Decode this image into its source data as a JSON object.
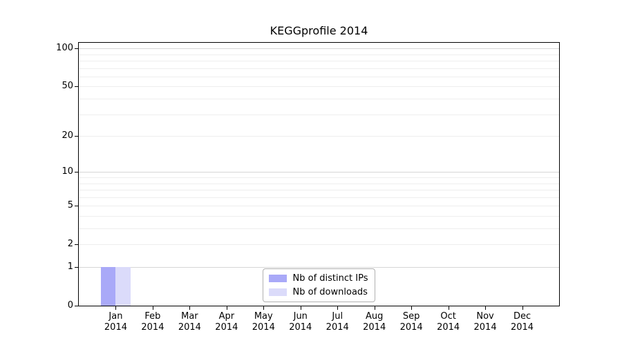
{
  "chart_data": {
    "type": "bar",
    "title": "KEGGprofile 2014",
    "categories": [
      "Jan",
      "Feb",
      "Mar",
      "Apr",
      "May",
      "Jun",
      "Jul",
      "Aug",
      "Sep",
      "Oct",
      "Nov",
      "Dec"
    ],
    "category_year": "2014",
    "series": [
      {
        "name": "Nb of distinct IPs",
        "color": "#a9a9f8",
        "values": [
          1,
          0,
          0,
          0,
          0,
          0,
          0,
          0,
          0,
          0,
          0,
          0
        ]
      },
      {
        "name": "Nb of downloads",
        "color": "#dbdbfa",
        "values": [
          1,
          0,
          0,
          0,
          0,
          0,
          0,
          0,
          0,
          0,
          0,
          0
        ]
      }
    ],
    "xlabel": "",
    "ylabel": "",
    "yaxis": {
      "scale": "log1p",
      "tick_values": [
        0,
        1,
        2,
        5,
        10,
        20,
        50,
        100
      ],
      "grid_major_values": [
        1,
        10,
        100
      ],
      "grid_minor_values": [
        2,
        3,
        4,
        5,
        6,
        7,
        8,
        9,
        20,
        30,
        40,
        50,
        60,
        70,
        80,
        90
      ],
      "ylim": [
        0,
        111
      ]
    },
    "grid": true,
    "legend_position": "lower center inside",
    "colors": {
      "grid_major": "#d6d6d6",
      "grid_minor": "#eeeeee",
      "axis": "#000000",
      "text": "#000000",
      "legend_border": "#b0b0b0"
    }
  }
}
